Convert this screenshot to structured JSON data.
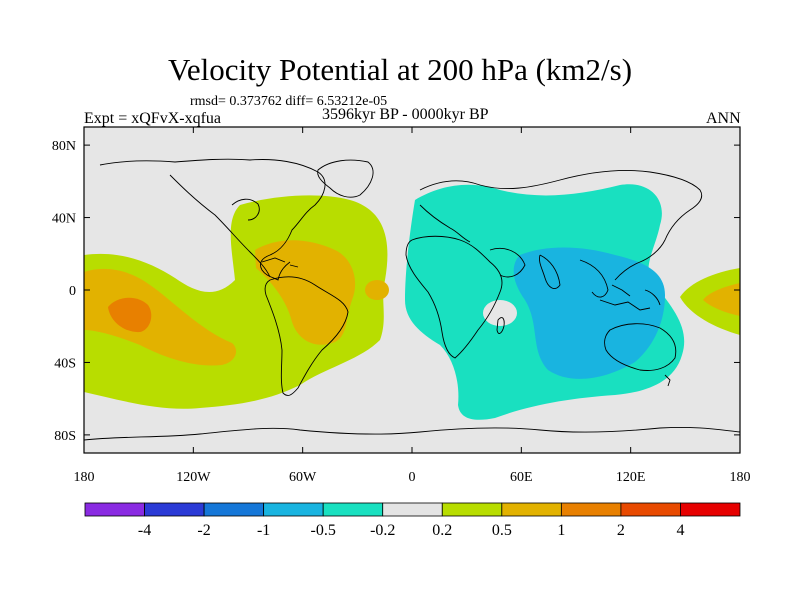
{
  "chart_data": {
    "type": "contour-map",
    "title": "Velocity Potential at 200 hPa (km2/s)",
    "stats": "rmsd= 0.373762 diff= 6.53212e-05",
    "left_label": "Expt = xQFvX-xqfua",
    "center_label": "3596kyr BP - 0000kyr BP",
    "right_label": "ANN",
    "xlim": [
      -180,
      180
    ],
    "ylim": [
      -90,
      90
    ],
    "x_ticks": [
      {
        "value": -180,
        "label": "180"
      },
      {
        "value": -120,
        "label": "120W"
      },
      {
        "value": -60,
        "label": "60W"
      },
      {
        "value": 0,
        "label": "0"
      },
      {
        "value": 60,
        "label": "60E"
      },
      {
        "value": 120,
        "label": "120E"
      },
      {
        "value": 180,
        "label": "180"
      }
    ],
    "y_ticks": [
      {
        "value": 80,
        "label": "80N"
      },
      {
        "value": 40,
        "label": "40N"
      },
      {
        "value": 0,
        "label": "0"
      },
      {
        "value": -40,
        "label": "40S"
      },
      {
        "value": -80,
        "label": "80S"
      }
    ],
    "colorbar": {
      "labels": [
        "-4",
        "-2",
        "-1",
        "-0.5",
        "-0.2",
        "0.2",
        "0.5",
        "1",
        "2",
        "4"
      ],
      "colors": [
        "#8a2be2",
        "#2b3bd6",
        "#1577d8",
        "#19b4e0",
        "#19e0c0",
        "#e4e4e4",
        "#b8dd00",
        "#e2b200",
        "#e88000",
        "#e84a00",
        "#e60000"
      ]
    },
    "fills": [
      {
        "level": "0.2 to 0.5",
        "color": "#b8dd00",
        "region": "eastern Pacific / Americas positive anomaly"
      },
      {
        "level": "0.5 to 1",
        "color": "#e2b200",
        "region": "central Pacific, Caribbean, South America"
      },
      {
        "level": "1 to 2",
        "color": "#e88000",
        "region": "central tropical Pacific small core"
      },
      {
        "level": "-0.5 to -0.2",
        "color": "#19e0c0",
        "region": "Africa, Eurasia, Indian Ocean"
      },
      {
        "level": "-1 to -0.5",
        "color": "#19b4e0",
        "region": "Indian Ocean / Maritime Continent"
      },
      {
        "level": "0.2 to 0.5",
        "color": "#b8dd00",
        "region": "western Pacific dateline"
      },
      {
        "level": "0.5 to 1",
        "color": "#e2b200",
        "region": "western Pacific dateline core"
      }
    ]
  }
}
